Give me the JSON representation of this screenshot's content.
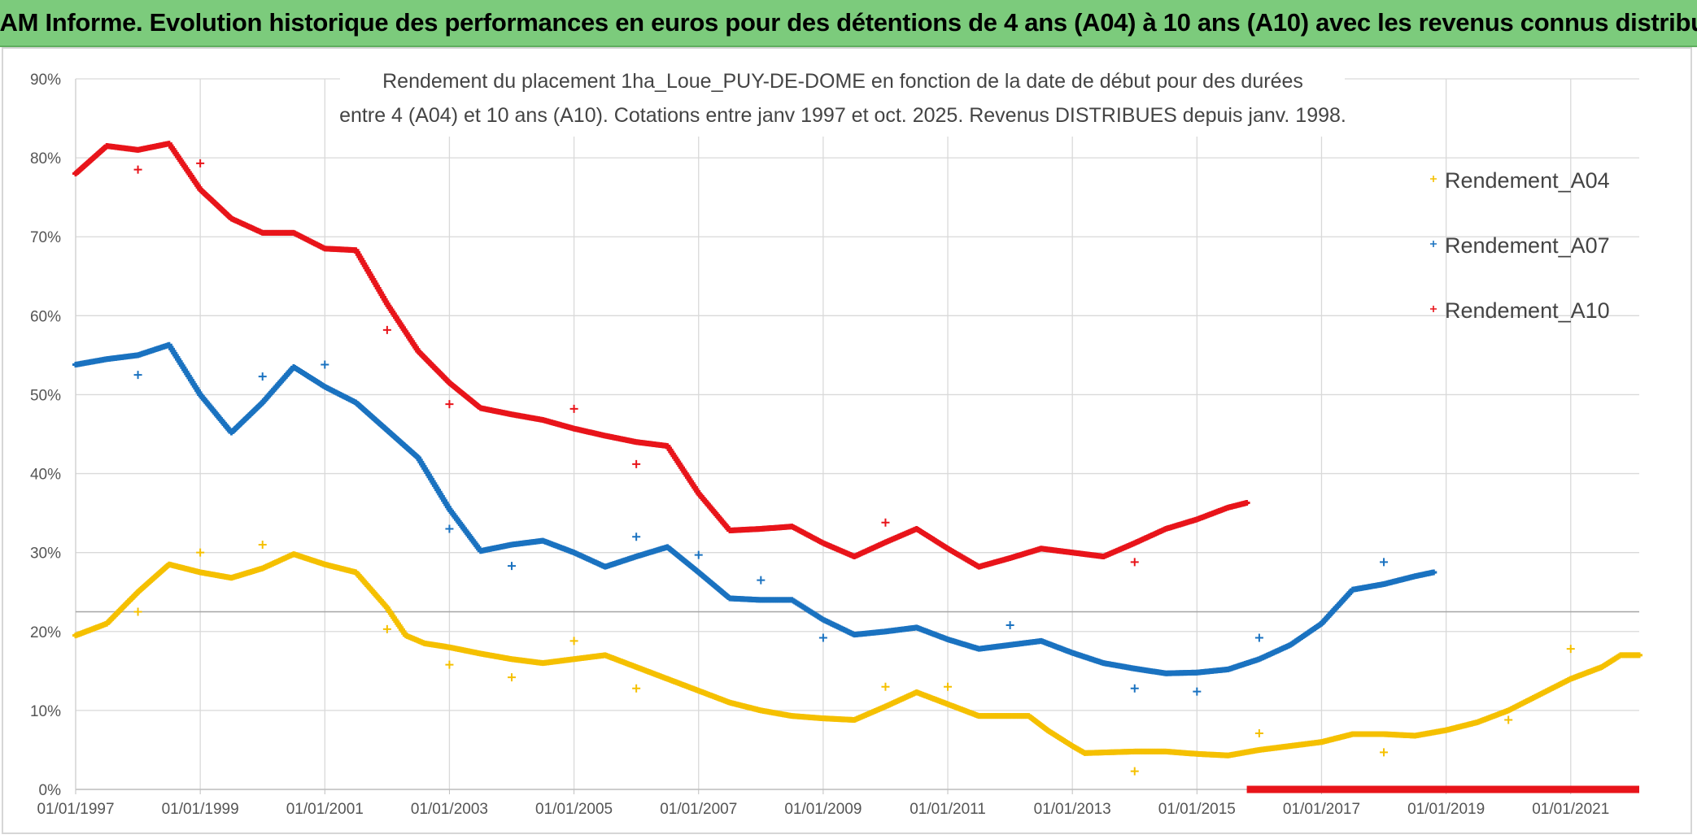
{
  "banner": {
    "title": "ADAM Informe. Evolution historique des performances en euros pour des détentions de 4 ans (A04) à 10 ans (A10) avec les revenus connus distribués"
  },
  "chart_data": {
    "type": "scatter",
    "title_line1": "Rendement du placement 1ha_Loue_PUY-DE-DOME en fonction de la date de début pour des durées",
    "title_line2": "entre 4 (A04) et 10 ans (A10). Cotations entre janv 1997 et oct. 2025. Revenus DISTRIBUES depuis janv. 1998.",
    "x_ticks": [
      "01/01/1997",
      "01/01/1999",
      "01/01/2001",
      "01/01/2003",
      "01/01/2005",
      "01/01/2007",
      "01/01/2009",
      "01/01/2011",
      "01/01/2013",
      "01/01/2015",
      "01/01/2017",
      "01/01/2019",
      "01/01/2021"
    ],
    "y_ticks": [
      "0%",
      "10%",
      "20%",
      "30%",
      "40%",
      "50%",
      "60%",
      "70%",
      "80%",
      "90%"
    ],
    "xlim": [
      1997.0,
      2022.1
    ],
    "ylim": [
      0,
      90
    ],
    "grid": true,
    "legend_position": "top-right",
    "reference_line_y": 22.5,
    "series": [
      {
        "name": "Rendement_A04",
        "color": "#f5c000",
        "points": [
          [
            1997.0,
            19.5
          ],
          [
            1997.5,
            21
          ],
          [
            1998.0,
            25
          ],
          [
            1998.5,
            28.5
          ],
          [
            1999.0,
            27.5
          ],
          [
            1999.5,
            26.8
          ],
          [
            2000.0,
            28
          ],
          [
            2000.5,
            29.8
          ],
          [
            2001.0,
            28.5
          ],
          [
            2001.5,
            27.5
          ],
          [
            2002.0,
            23
          ],
          [
            2002.3,
            19.5
          ],
          [
            2002.6,
            18.5
          ],
          [
            2003.0,
            18
          ],
          [
            2003.5,
            17.2
          ],
          [
            2004.0,
            16.5
          ],
          [
            2004.5,
            16
          ],
          [
            2005.0,
            16.5
          ],
          [
            2005.5,
            17
          ],
          [
            2006.0,
            15.5
          ],
          [
            2006.5,
            14
          ],
          [
            2007.0,
            12.5
          ],
          [
            2007.5,
            11
          ],
          [
            2008.0,
            10
          ],
          [
            2008.5,
            9.3
          ],
          [
            2009.0,
            9
          ],
          [
            2009.5,
            8.8
          ],
          [
            2010.0,
            10.5
          ],
          [
            2010.5,
            12.3
          ],
          [
            2011.0,
            10.8
          ],
          [
            2011.5,
            9.3
          ],
          [
            2012.0,
            9.3
          ],
          [
            2012.3,
            9.3
          ],
          [
            2012.6,
            7.5
          ],
          [
            2013.0,
            5.5
          ],
          [
            2013.2,
            4.6
          ],
          [
            2013.6,
            4.7
          ],
          [
            2014.0,
            4.8
          ],
          [
            2014.5,
            4.8
          ],
          [
            2015.0,
            4.5
          ],
          [
            2015.5,
            4.3
          ],
          [
            2016.0,
            5
          ],
          [
            2016.5,
            5.5
          ],
          [
            2017.0,
            6
          ],
          [
            2017.5,
            7
          ],
          [
            2018.0,
            7
          ],
          [
            2018.5,
            6.8
          ],
          [
            2019.0,
            7.5
          ],
          [
            2019.5,
            8.5
          ],
          [
            2020.0,
            10
          ],
          [
            2020.5,
            12
          ],
          [
            2021.0,
            14
          ],
          [
            2021.5,
            15.5
          ],
          [
            2021.8,
            17
          ],
          [
            2022.1,
            17
          ]
        ],
        "scatter": [
          [
            1998.0,
            22.5
          ],
          [
            1999.0,
            30
          ],
          [
            2000.0,
            31
          ],
          [
            2002.0,
            20.3
          ],
          [
            2003.0,
            15.8
          ],
          [
            2004.0,
            14.2
          ],
          [
            2005.0,
            18.8
          ],
          [
            2006.0,
            12.8
          ],
          [
            2010.0,
            13
          ],
          [
            2011.0,
            13
          ],
          [
            2014.0,
            2.3
          ],
          [
            2016.0,
            7.1
          ],
          [
            2018.0,
            4.7
          ],
          [
            2020.0,
            8.8
          ],
          [
            2021.0,
            17.8
          ]
        ]
      },
      {
        "name": "Rendement_A07",
        "color": "#1a72c0",
        "points": [
          [
            1997.0,
            53.8
          ],
          [
            1997.5,
            54.5
          ],
          [
            1998.0,
            55
          ],
          [
            1998.5,
            56.3
          ],
          [
            1999.0,
            50
          ],
          [
            1999.5,
            45.2
          ],
          [
            2000.0,
            49
          ],
          [
            2000.5,
            53.5
          ],
          [
            2001.0,
            51
          ],
          [
            2001.5,
            49
          ],
          [
            2002.0,
            45.5
          ],
          [
            2002.5,
            42
          ],
          [
            2003.0,
            35.5
          ],
          [
            2003.5,
            30.2
          ],
          [
            2004.0,
            31
          ],
          [
            2004.5,
            31.5
          ],
          [
            2005.0,
            30
          ],
          [
            2005.5,
            28.2
          ],
          [
            2006.0,
            29.5
          ],
          [
            2006.5,
            30.7
          ],
          [
            2007.0,
            27.5
          ],
          [
            2007.5,
            24.2
          ],
          [
            2008.0,
            24
          ],
          [
            2008.5,
            24
          ],
          [
            2009.0,
            21.5
          ],
          [
            2009.5,
            19.6
          ],
          [
            2010.0,
            20
          ],
          [
            2010.5,
            20.5
          ],
          [
            2011.0,
            19
          ],
          [
            2011.5,
            17.8
          ],
          [
            2012.0,
            18.3
          ],
          [
            2012.5,
            18.8
          ],
          [
            2013.0,
            17.3
          ],
          [
            2013.5,
            16
          ],
          [
            2014.0,
            15.3
          ],
          [
            2014.5,
            14.7
          ],
          [
            2015.0,
            14.8
          ],
          [
            2015.5,
            15.2
          ],
          [
            2016.0,
            16.5
          ],
          [
            2016.5,
            18.3
          ],
          [
            2017.0,
            21
          ],
          [
            2017.5,
            25.3
          ],
          [
            2018.0,
            26
          ],
          [
            2018.5,
            27
          ],
          [
            2018.8,
            27.5
          ]
        ],
        "scatter": [
          [
            1998.0,
            52.5
          ],
          [
            2000.0,
            52.3
          ],
          [
            2001.0,
            53.8
          ],
          [
            2003.0,
            33
          ],
          [
            2004.0,
            28.3
          ],
          [
            2006.0,
            32
          ],
          [
            2007.0,
            29.7
          ],
          [
            2008.0,
            26.5
          ],
          [
            2009.0,
            19.2
          ],
          [
            2012.0,
            20.8
          ],
          [
            2014.0,
            12.8
          ],
          [
            2015.0,
            12.4
          ],
          [
            2016.0,
            19.2
          ],
          [
            2018.0,
            28.8
          ]
        ]
      },
      {
        "name": "Rendement_A10",
        "color": "#e8141a",
        "points": [
          [
            1997.0,
            78
          ],
          [
            1997.5,
            81.5
          ],
          [
            1998.0,
            81
          ],
          [
            1998.5,
            81.8
          ],
          [
            1999.0,
            76
          ],
          [
            1999.5,
            72.3
          ],
          [
            2000.0,
            70.5
          ],
          [
            2000.5,
            70.5
          ],
          [
            2001.0,
            68.5
          ],
          [
            2001.5,
            68.3
          ],
          [
            2002.0,
            61.5
          ],
          [
            2002.5,
            55.5
          ],
          [
            2003.0,
            51.5
          ],
          [
            2003.5,
            48.3
          ],
          [
            2004.0,
            47.5
          ],
          [
            2004.5,
            46.8
          ],
          [
            2005.0,
            45.7
          ],
          [
            2005.5,
            44.8
          ],
          [
            2006.0,
            44
          ],
          [
            2006.5,
            43.5
          ],
          [
            2007.0,
            37.5
          ],
          [
            2007.5,
            32.8
          ],
          [
            2008.0,
            33
          ],
          [
            2008.5,
            33.3
          ],
          [
            2009.0,
            31.2
          ],
          [
            2009.5,
            29.5
          ],
          [
            2010.0,
            31.3
          ],
          [
            2010.5,
            33
          ],
          [
            2011.0,
            30.5
          ],
          [
            2011.5,
            28.2
          ],
          [
            2012.0,
            29.3
          ],
          [
            2012.5,
            30.5
          ],
          [
            2013.0,
            30
          ],
          [
            2013.5,
            29.5
          ],
          [
            2014.0,
            31.2
          ],
          [
            2014.5,
            33
          ],
          [
            2015.0,
            34.2
          ],
          [
            2015.5,
            35.7
          ],
          [
            2015.8,
            36.3
          ]
        ],
        "scatter": [
          [
            1998.0,
            78.5
          ],
          [
            1999.0,
            79.3
          ],
          [
            2002.0,
            58.2
          ],
          [
            2003.0,
            48.8
          ],
          [
            2005.0,
            48.2
          ],
          [
            2006.0,
            41.2
          ],
          [
            2010.0,
            33.8
          ],
          [
            2014.0,
            28.8
          ]
        ],
        "zero_range": [
          2015.8,
          2022.1
        ]
      }
    ]
  }
}
